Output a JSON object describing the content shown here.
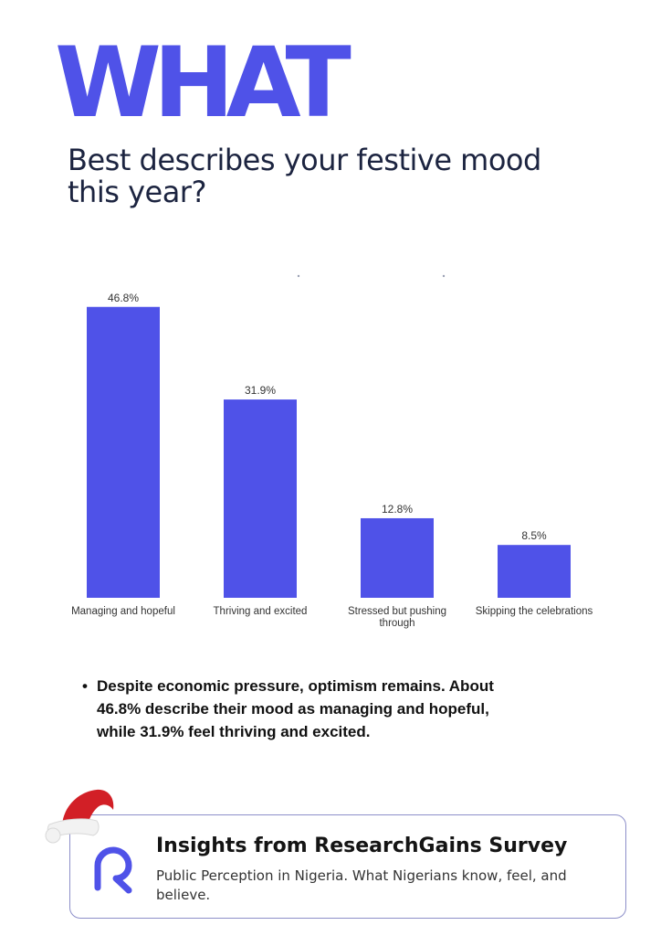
{
  "header": {
    "headline": "WHAT",
    "question": "Best describes your festive mood this year?"
  },
  "chart_data": {
    "type": "bar",
    "categories": [
      "Managing and hopeful",
      "Thriving and excited",
      "Stressed but pushing through",
      "Skipping the celebrations"
    ],
    "values": [
      46.8,
      31.9,
      12.8,
      8.5
    ],
    "data_labels": [
      "46.8%",
      "31.9%",
      "12.8%",
      "8.5%"
    ],
    "title": "",
    "xlabel": "",
    "ylabel": "",
    "ylim": [
      0,
      50
    ],
    "grid": false,
    "bar_color": "#4f52e8"
  },
  "insight": {
    "bullet": "•",
    "text": "Despite economic pressure, optimism remains. About 46.8% describe their mood as managing and hopeful, while 31.9% feel thriving and excited."
  },
  "footer": {
    "title": "Insights from ResearchGains Survey",
    "subtitle": "Public Perception in Nigeria. What Nigerians know, feel, and believe.",
    "logo_icon": "researchgains-logo-icon",
    "decoration_icon": "santa-hat-icon",
    "border_color": "#8d8fc9"
  },
  "colors": {
    "accent": "#4f52e8",
    "heading_text": "#1c2440"
  }
}
